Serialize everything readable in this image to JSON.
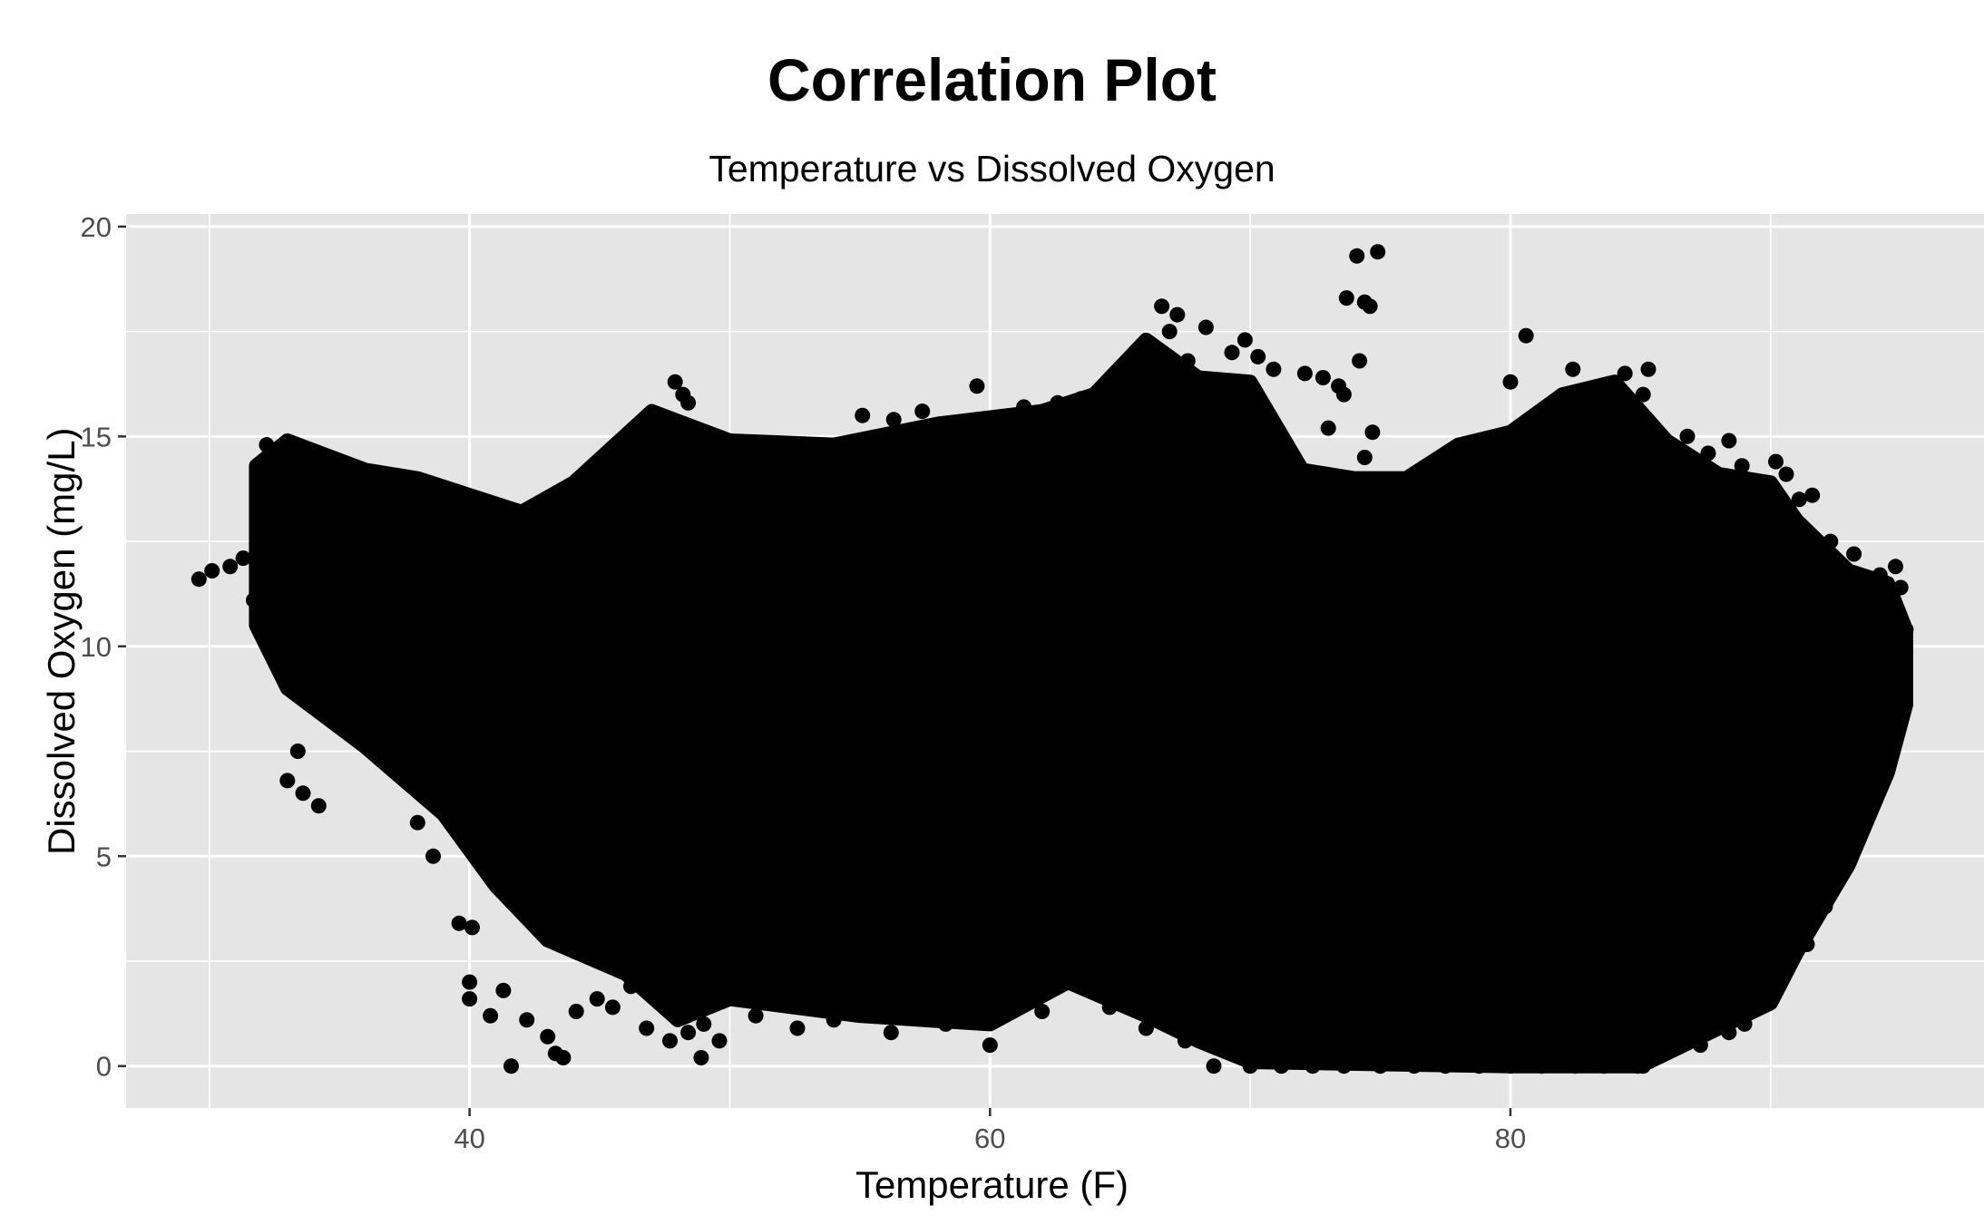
{
  "chart_data": {
    "type": "scatter",
    "title": "Correlation Plot",
    "subtitle": "Temperature vs Dissolved Oxygen",
    "xlabel": "Temperature (F)",
    "ylabel": "Dissolved Oxygen (mg/L)",
    "xlim": [
      26.8,
      98.2
    ],
    "ylim": [
      -1,
      20.3
    ],
    "x_ticks": [
      40,
      60,
      80
    ],
    "x_tick_labels": [
      "40",
      "60",
      "80"
    ],
    "y_ticks": [
      0,
      5,
      10,
      15,
      20
    ],
    "y_tick_labels": [
      "0",
      "5",
      "10",
      "15",
      "20"
    ],
    "grid": true,
    "legend": "none",
    "point_color": "#000000",
    "panel_color": "#e5e5e5",
    "grid_color": "#ffffff",
    "dense_region": {
      "description": "solid cloud of overlapping points",
      "lower_boundary": [
        [
          31.8,
          10.5
        ],
        [
          33,
          9
        ],
        [
          36,
          7.6
        ],
        [
          39,
          6
        ],
        [
          41,
          4.3
        ],
        [
          43,
          3
        ],
        [
          46,
          2.2
        ],
        [
          48,
          1.1
        ],
        [
          50,
          1.6
        ],
        [
          55,
          1.2
        ],
        [
          60,
          1.0
        ],
        [
          63,
          2.0
        ],
        [
          66,
          1.2
        ],
        [
          68,
          0.6
        ],
        [
          70,
          0.1
        ],
        [
          80,
          0.0
        ],
        [
          85,
          0.0
        ],
        [
          87,
          0.6
        ],
        [
          90,
          1.5
        ],
        [
          91,
          2.7
        ],
        [
          93,
          4.8
        ],
        [
          94.5,
          7
        ],
        [
          95.2,
          8.6
        ]
      ],
      "upper_boundary": [
        [
          31.8,
          14.3
        ],
        [
          33,
          14.9
        ],
        [
          36,
          14.2
        ],
        [
          38,
          14.0
        ],
        [
          40,
          13.6
        ],
        [
          42,
          13.2
        ],
        [
          44,
          13.9
        ],
        [
          47,
          15.6
        ],
        [
          50,
          14.9
        ],
        [
          54,
          14.8
        ],
        [
          58,
          15.3
        ],
        [
          62,
          15.6
        ],
        [
          64,
          16.0
        ],
        [
          66,
          17.3
        ],
        [
          68,
          16.4
        ],
        [
          70,
          16.3
        ],
        [
          72,
          14.2
        ],
        [
          74,
          14.0
        ],
        [
          76,
          14.0
        ],
        [
          78,
          14.8
        ],
        [
          80,
          15.1
        ],
        [
          82,
          16.0
        ],
        [
          84,
          16.3
        ],
        [
          86,
          14.9
        ],
        [
          88,
          14.1
        ],
        [
          90,
          13.9
        ],
        [
          91,
          13.0
        ],
        [
          93,
          11.8
        ],
        [
          94.5,
          11.5
        ],
        [
          95.2,
          10.4
        ]
      ]
    },
    "points": [
      {
        "x": 29.6,
        "y": 11.6
      },
      {
        "x": 30.1,
        "y": 11.8
      },
      {
        "x": 30.8,
        "y": 11.9
      },
      {
        "x": 31.3,
        "y": 12.1
      },
      {
        "x": 31.7,
        "y": 11.1
      },
      {
        "x": 32.2,
        "y": 14.8
      },
      {
        "x": 33.0,
        "y": 6.8
      },
      {
        "x": 33.6,
        "y": 6.5
      },
      {
        "x": 34.2,
        "y": 6.2
      },
      {
        "x": 33.4,
        "y": 7.5
      },
      {
        "x": 38.0,
        "y": 5.8
      },
      {
        "x": 38.6,
        "y": 5.0
      },
      {
        "x": 39.6,
        "y": 3.4
      },
      {
        "x": 40.1,
        "y": 3.3
      },
      {
        "x": 40.0,
        "y": 2.0
      },
      {
        "x": 40.0,
        "y": 1.6
      },
      {
        "x": 40.8,
        "y": 1.2
      },
      {
        "x": 41.3,
        "y": 1.8
      },
      {
        "x": 42.2,
        "y": 1.1
      },
      {
        "x": 41.6,
        "y": 0.0
      },
      {
        "x": 43.0,
        "y": 0.7
      },
      {
        "x": 43.3,
        "y": 0.3
      },
      {
        "x": 43.6,
        "y": 0.2
      },
      {
        "x": 44.1,
        "y": 1.3
      },
      {
        "x": 44.9,
        "y": 1.6
      },
      {
        "x": 46.8,
        "y": 0.9
      },
      {
        "x": 47.7,
        "y": 0.6
      },
      {
        "x": 48.4,
        "y": 0.8
      },
      {
        "x": 48.9,
        "y": 0.2
      },
      {
        "x": 49.6,
        "y": 0.6
      },
      {
        "x": 49.0,
        "y": 1.0
      },
      {
        "x": 47.9,
        "y": 16.3
      },
      {
        "x": 48.2,
        "y": 16.0
      },
      {
        "x": 48.4,
        "y": 15.8
      },
      {
        "x": 55.1,
        "y": 15.5
      },
      {
        "x": 56.3,
        "y": 15.4
      },
      {
        "x": 57.4,
        "y": 15.6
      },
      {
        "x": 59.5,
        "y": 16.2
      },
      {
        "x": 61.3,
        "y": 15.7
      },
      {
        "x": 62.6,
        "y": 15.8
      },
      {
        "x": 63.5,
        "y": 15.9
      },
      {
        "x": 64.9,
        "y": 16.2
      },
      {
        "x": 65.5,
        "y": 16.9
      },
      {
        "x": 66.1,
        "y": 16.7
      },
      {
        "x": 66.6,
        "y": 18.1
      },
      {
        "x": 67.2,
        "y": 17.9
      },
      {
        "x": 66.9,
        "y": 17.5
      },
      {
        "x": 67.6,
        "y": 16.8
      },
      {
        "x": 68.3,
        "y": 17.6
      },
      {
        "x": 69.3,
        "y": 17.0
      },
      {
        "x": 69.8,
        "y": 17.3
      },
      {
        "x": 70.3,
        "y": 16.9
      },
      {
        "x": 70.9,
        "y": 16.6
      },
      {
        "x": 71.4,
        "y": 14.8
      },
      {
        "x": 72.1,
        "y": 16.5
      },
      {
        "x": 72.8,
        "y": 16.4
      },
      {
        "x": 73.4,
        "y": 16.2
      },
      {
        "x": 73.7,
        "y": 18.3
      },
      {
        "x": 74.1,
        "y": 19.3
      },
      {
        "x": 74.4,
        "y": 18.2
      },
      {
        "x": 74.6,
        "y": 18.1
      },
      {
        "x": 74.9,
        "y": 19.4
      },
      {
        "x": 74.2,
        "y": 16.8
      },
      {
        "x": 74.7,
        "y": 15.1
      },
      {
        "x": 74.4,
        "y": 14.5
      },
      {
        "x": 73.6,
        "y": 16.0
      },
      {
        "x": 73.0,
        "y": 15.2
      },
      {
        "x": 80.0,
        "y": 16.3
      },
      {
        "x": 80.6,
        "y": 17.4
      },
      {
        "x": 81.5,
        "y": 15.6
      },
      {
        "x": 82.4,
        "y": 16.6
      },
      {
        "x": 83.5,
        "y": 16.2
      },
      {
        "x": 84.4,
        "y": 16.5
      },
      {
        "x": 85.3,
        "y": 16.6
      },
      {
        "x": 85.1,
        "y": 16.0
      },
      {
        "x": 86.8,
        "y": 15.0
      },
      {
        "x": 87.6,
        "y": 14.6
      },
      {
        "x": 88.4,
        "y": 14.9
      },
      {
        "x": 88.9,
        "y": 14.3
      },
      {
        "x": 89.6,
        "y": 13.8
      },
      {
        "x": 90.2,
        "y": 14.4
      },
      {
        "x": 90.6,
        "y": 14.1
      },
      {
        "x": 91.1,
        "y": 13.5
      },
      {
        "x": 91.6,
        "y": 13.6
      },
      {
        "x": 92.3,
        "y": 12.5
      },
      {
        "x": 93.2,
        "y": 12.2
      },
      {
        "x": 94.2,
        "y": 11.7
      },
      {
        "x": 94.8,
        "y": 11.9
      },
      {
        "x": 95.0,
        "y": 11.4
      },
      {
        "x": 95.2,
        "y": 10.4
      },
      {
        "x": 94.7,
        "y": 9.9
      },
      {
        "x": 95.1,
        "y": 8.7
      },
      {
        "x": 94.5,
        "y": 7.6
      },
      {
        "x": 94.2,
        "y": 6.6
      },
      {
        "x": 93.3,
        "y": 5.8
      },
      {
        "x": 92.7,
        "y": 4.8
      },
      {
        "x": 92.1,
        "y": 3.8
      },
      {
        "x": 91.4,
        "y": 2.9
      },
      {
        "x": 90.6,
        "y": 2.6
      },
      {
        "x": 89.6,
        "y": 1.6
      },
      {
        "x": 89.0,
        "y": 1.0
      },
      {
        "x": 88.4,
        "y": 0.8
      },
      {
        "x": 87.3,
        "y": 0.5
      },
      {
        "x": 86.0,
        "y": 0.6
      },
      {
        "x": 85.1,
        "y": 0.0
      },
      {
        "x": 84.9,
        "y": 0.0
      },
      {
        "x": 83.6,
        "y": 0.0
      },
      {
        "x": 82.5,
        "y": 0.0
      },
      {
        "x": 81.2,
        "y": 0.0
      },
      {
        "x": 80.0,
        "y": 0.0
      },
      {
        "x": 78.8,
        "y": 0.0
      },
      {
        "x": 77.5,
        "y": 0.0
      },
      {
        "x": 76.3,
        "y": 0.0
      },
      {
        "x": 75.0,
        "y": 0.0
      },
      {
        "x": 73.6,
        "y": 0.0
      },
      {
        "x": 72.4,
        "y": 0.0
      },
      {
        "x": 71.2,
        "y": 0.0
      },
      {
        "x": 70.0,
        "y": 0.0
      },
      {
        "x": 68.6,
        "y": 0.0
      },
      {
        "x": 67.5,
        "y": 0.6
      },
      {
        "x": 66.0,
        "y": 0.9
      },
      {
        "x": 64.6,
        "y": 1.4
      },
      {
        "x": 60.0,
        "y": 0.5
      },
      {
        "x": 58.3,
        "y": 1.0
      },
      {
        "x": 56.2,
        "y": 0.8
      },
      {
        "x": 52.6,
        "y": 0.9
      },
      {
        "x": 51.0,
        "y": 1.2
      },
      {
        "x": 54.0,
        "y": 1.1
      },
      {
        "x": 62.0,
        "y": 1.3
      },
      {
        "x": 45.5,
        "y": 1.4
      },
      {
        "x": 46.2,
        "y": 1.9
      }
    ]
  }
}
